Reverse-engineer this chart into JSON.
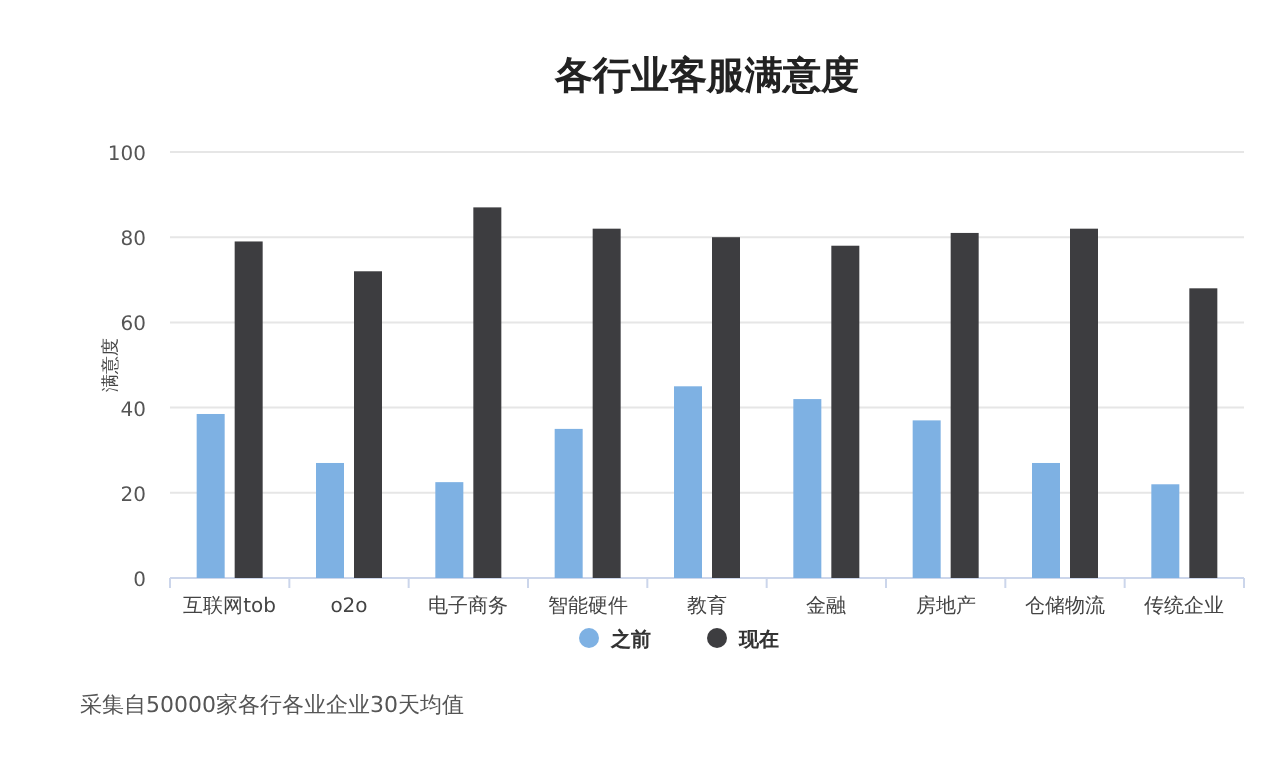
{
  "chart_data": {
    "type": "bar",
    "title": "各行业客服满意度",
    "ylabel": "满意度",
    "categories": [
      "互联网tob",
      "o2o",
      "电子商务",
      "智能硬件",
      "教育",
      "金融",
      "房地产",
      "仓储物流",
      "传统企业"
    ],
    "series": [
      {
        "name": "之前",
        "color": "#7eb1e3",
        "values": [
          38.5,
          27,
          22.5,
          35,
          45,
          42,
          37,
          27,
          22
        ]
      },
      {
        "name": "现在",
        "color": "#3d3d40",
        "values": [
          79,
          72,
          87,
          82,
          80,
          78,
          81,
          82,
          68
        ]
      }
    ],
    "ylim": [
      0,
      100
    ],
    "yticks": [
      0,
      20,
      40,
      60,
      80,
      100
    ],
    "grid": "y",
    "legend": "bottom",
    "annotations": [
      "采集自50000家各行各业企业30天均值"
    ]
  }
}
